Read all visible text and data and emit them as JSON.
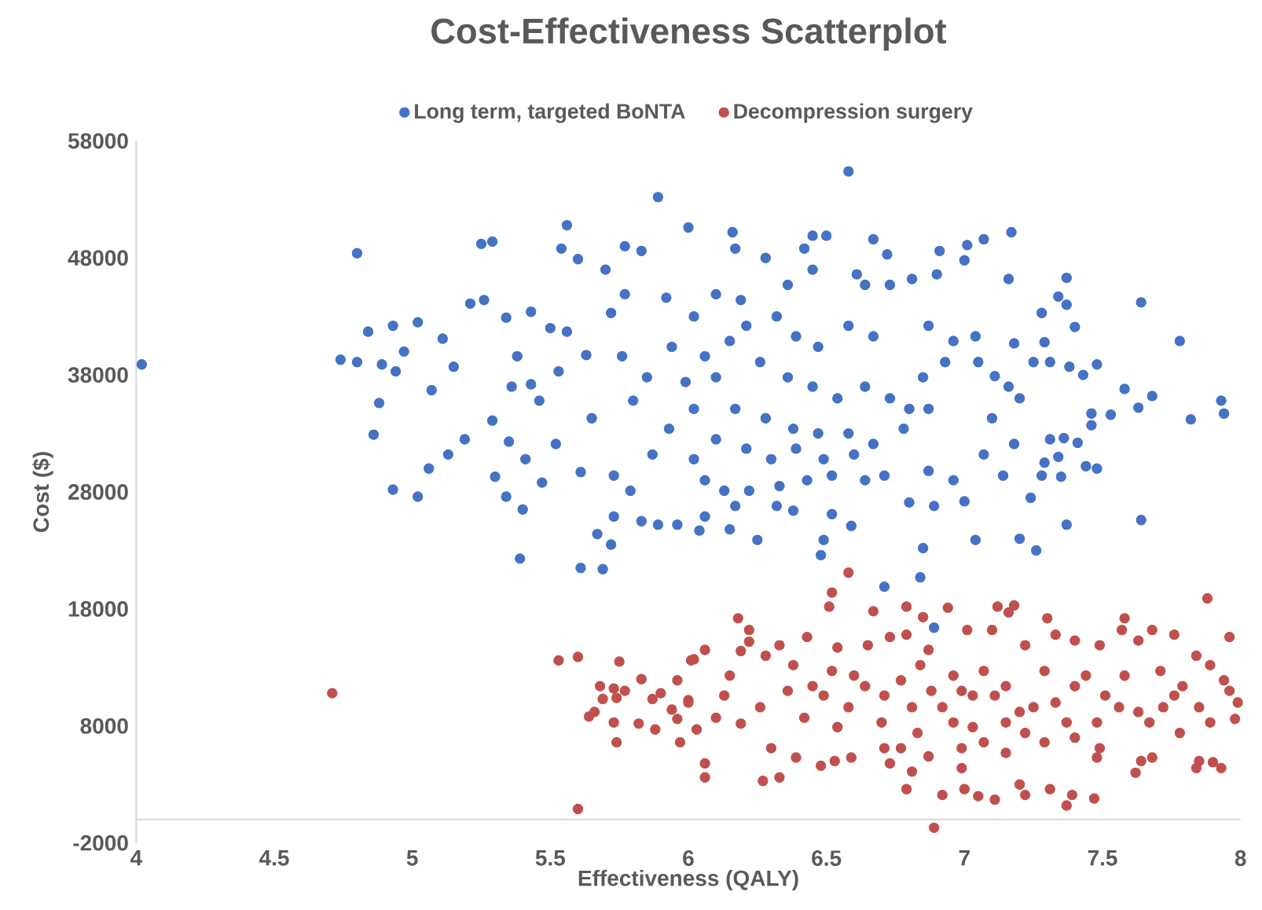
{
  "chart_data": {
    "type": "scatter",
    "title": "Cost-Effectiveness Scatterplot",
    "xlabel": "Effectiveness (QALY)",
    "ylabel": "Cost ($)",
    "xlim": [
      4,
      8
    ],
    "ylim": [
      -2000,
      58000
    ],
    "xticks": [
      4,
      4.5,
      5,
      5.5,
      6,
      6.5,
      7,
      7.5,
      8
    ],
    "yticks": [
      -2000,
      8000,
      18000,
      28000,
      38000,
      48000,
      58000
    ],
    "legend": "top",
    "series": [
      {
        "name": "Long term, targeted BoNTA",
        "color": "#4472c4",
        "x": [
          4.02,
          4.8,
          4.74,
          4.8,
          4.84,
          4.89,
          4.93,
          4.97,
          4.94,
          4.88,
          4.86,
          5.02,
          5.11,
          5.07,
          4.93,
          5.02,
          5.06,
          5.13,
          5.19,
          5.15,
          5.25,
          5.29,
          5.21,
          5.26,
          5.34,
          5.43,
          5.56,
          5.54,
          5.6,
          5.7,
          5.77,
          5.83,
          5.89,
          6.0,
          5.39,
          5.61,
          5.69,
          5.72,
          5.67,
          5.4,
          5.3,
          5.34,
          5.47,
          5.41,
          5.35,
          5.29,
          5.36,
          5.43,
          5.38,
          5.5,
          5.56,
          5.53,
          5.46,
          5.52,
          5.63,
          5.65,
          5.61,
          5.73,
          5.79,
          5.83,
          5.89,
          5.96,
          5.73,
          5.76,
          5.8,
          5.85,
          5.87,
          5.92,
          5.94,
          5.93,
          5.99,
          5.72,
          5.77,
          6.58,
          6.16,
          6.17,
          6.28,
          6.42,
          6.45,
          6.5,
          6.67,
          6.72,
          6.91,
          7.01,
          7.07,
          7.17,
          7.0,
          7.16,
          7.37,
          7.34,
          7.37,
          7.28,
          7.4,
          7.64,
          7.78,
          7.48,
          7.43,
          7.38,
          7.31,
          7.25,
          7.29,
          7.18,
          7.58,
          7.68,
          7.63,
          7.53,
          7.82,
          7.93,
          7.94,
          7.46,
          7.46,
          7.41,
          7.36,
          7.31,
          7.34,
          7.29,
          7.28,
          7.35,
          7.44,
          7.48,
          7.64,
          7.37,
          7.26,
          7.2,
          7.24,
          7.18,
          7.2,
          7.16,
          7.11,
          7.05,
          7.04,
          7.1,
          7.07,
          7.14,
          7.04,
          7.0,
          6.85,
          6.8,
          6.89,
          6.96,
          6.87,
          6.78,
          6.87,
          6.85,
          6.93,
          6.96,
          6.87,
          6.81,
          6.9,
          6.73,
          6.64,
          6.61,
          6.45,
          6.36,
          6.58,
          6.67,
          6.47,
          6.39,
          6.32,
          6.19,
          6.1,
          6.02,
          6.21,
          6.15,
          6.06,
          6.26,
          6.36,
          6.45,
          6.54,
          6.64,
          6.73,
          6.8,
          6.1,
          6.02,
          6.17,
          6.28,
          6.38,
          6.47,
          6.58,
          6.67,
          6.6,
          6.49,
          6.39,
          6.3,
          6.21,
          6.1,
          6.02,
          6.06,
          6.13,
          6.22,
          6.33,
          6.43,
          6.52,
          6.64,
          6.71,
          6.17,
          6.25,
          6.06,
          6.15,
          6.32,
          6.38,
          6.52,
          6.49,
          6.48,
          6.59,
          6.04,
          6.89,
          6.71,
          6.84
        ],
        "values": [
          38900,
          48400,
          39300,
          39100,
          41700,
          38900,
          42200,
          40000,
          38300,
          35600,
          32900,
          42500,
          41100,
          36700,
          28200,
          27600,
          30000,
          31200,
          32500,
          38700,
          49200,
          49400,
          44100,
          44400,
          42900,
          43400,
          50800,
          48800,
          47900,
          47000,
          49000,
          48600,
          53200,
          50600,
          22300,
          21500,
          21400,
          23500,
          24400,
          26500,
          29300,
          27600,
          28800,
          30800,
          32300,
          34100,
          37000,
          37200,
          39600,
          42000,
          41700,
          38300,
          35800,
          32100,
          39700,
          34300,
          29700,
          29400,
          28100,
          25500,
          25200,
          25200,
          25900,
          39600,
          35800,
          37800,
          31200,
          44600,
          40400,
          33400,
          37400,
          43300,
          44900,
          55400,
          50200,
          48800,
          48000,
          48800,
          49900,
          49900,
          49600,
          48300,
          48600,
          49100,
          49600,
          50200,
          47800,
          46200,
          46300,
          44700,
          44000,
          43300,
          42100,
          44200,
          40900,
          38900,
          38000,
          38700,
          39100,
          39100,
          40800,
          40700,
          36800,
          36200,
          35200,
          34600,
          34200,
          35800,
          34700,
          34700,
          33700,
          32200,
          32600,
          32500,
          31000,
          30500,
          29400,
          29300,
          30200,
          30000,
          25600,
          25200,
          23000,
          24000,
          27500,
          32100,
          36000,
          37000,
          37900,
          39100,
          41300,
          34300,
          31200,
          29400,
          23900,
          27200,
          23200,
          27100,
          26800,
          29000,
          29800,
          33400,
          35100,
          37800,
          39100,
          40900,
          42200,
          46200,
          46600,
          45700,
          45700,
          46600,
          47000,
          45700,
          42200,
          41300,
          40400,
          41300,
          43000,
          44400,
          44900,
          43000,
          42200,
          40900,
          39600,
          39100,
          37800,
          37000,
          36000,
          37000,
          36000,
          35100,
          37800,
          35100,
          35100,
          34300,
          33400,
          33000,
          33000,
          32100,
          31200,
          30800,
          31700,
          30800,
          31700,
          32500,
          30800,
          29000,
          28100,
          28100,
          28500,
          29000,
          29400,
          29000,
          29400,
          26800,
          23900,
          25900,
          24800,
          26800,
          26400,
          26100,
          23900,
          22600,
          25100,
          24700,
          16400,
          19900,
          20700
        ]
      },
      {
        "name": "Decompression surgery",
        "color": "#c0504d",
        "x": [
          4.71,
          5.53,
          5.6,
          5.75,
          5.83,
          5.96,
          6.01,
          5.68,
          5.73,
          5.77,
          5.69,
          5.74,
          5.87,
          5.9,
          6.0,
          5.94,
          5.64,
          5.66,
          5.73,
          5.82,
          5.88,
          5.96,
          6.03,
          5.74,
          5.97,
          5.6,
          6.58,
          6.52,
          6.51,
          6.67,
          6.79,
          6.85,
          6.94,
          7.12,
          7.18,
          7.16,
          7.3,
          7.58,
          7.88,
          7.96,
          6.18,
          6.22,
          6.02,
          6.06,
          6.19,
          6.22,
          6.28,
          6.33,
          6.43,
          6.54,
          6.65,
          6.73,
          6.79,
          6.87,
          7.01,
          7.1,
          7.22,
          7.33,
          7.4,
          7.49,
          7.57,
          7.63,
          7.68,
          7.76,
          7.84,
          7.89,
          7.94,
          7.99,
          7.98,
          7.93,
          7.85,
          7.84,
          6.0,
          6.06,
          6.06,
          6.1,
          6.13,
          6.19,
          6.15,
          6.26,
          6.27,
          6.33,
          6.3,
          6.39,
          6.42,
          6.49,
          6.48,
          6.53,
          6.54,
          6.58,
          6.59,
          6.64,
          6.7,
          6.71,
          6.73,
          6.79,
          6.81,
          6.87,
          6.89,
          6.92,
          6.92,
          6.96,
          6.99,
          7.0,
          7.05,
          7.03,
          7.11,
          7.11,
          7.15,
          7.2,
          7.22,
          7.25,
          7.31,
          7.37,
          7.39,
          7.47,
          7.4,
          7.48,
          7.48,
          7.49,
          7.56,
          7.62,
          7.64,
          7.68,
          7.67,
          7.72,
          7.78,
          7.79,
          7.85,
          7.89,
          7.96,
          7.9,
          7.03,
          7.07,
          7.15,
          7.2,
          7.29,
          7.33,
          7.37,
          7.44,
          7.51,
          7.58,
          7.63,
          7.71,
          7.76,
          6.77,
          6.81,
          6.71,
          6.6,
          6.52,
          6.45,
          6.36,
          6.38,
          6.84,
          6.88,
          6.96,
          6.99,
          6.83,
          6.77,
          7.22,
          7.15,
          7.29,
          7.4,
          7.07,
          6.99
        ],
        "values": [
          10800,
          13600,
          13900,
          13500,
          12000,
          11900,
          13600,
          11400,
          11200,
          11000,
          10300,
          10400,
          10300,
          10800,
          10200,
          9400,
          8800,
          9200,
          8300,
          8200,
          7700,
          8600,
          7700,
          6600,
          6600,
          900,
          21100,
          19400,
          18200,
          17800,
          18200,
          17300,
          18100,
          18200,
          18300,
          17700,
          17200,
          17200,
          18900,
          15600,
          17200,
          16200,
          13700,
          14500,
          14400,
          15200,
          14000,
          14900,
          15600,
          14700,
          14900,
          15600,
          15800,
          14500,
          16200,
          16200,
          14900,
          15800,
          15300,
          14900,
          16200,
          15300,
          16200,
          15800,
          14000,
          13200,
          11900,
          10000,
          8600,
          4400,
          5000,
          4400,
          10000,
          4800,
          3600,
          8700,
          10600,
          8200,
          12300,
          9600,
          3300,
          3600,
          6100,
          5300,
          8700,
          10600,
          4600,
          5000,
          7900,
          9600,
          5300,
          11400,
          8300,
          6100,
          4800,
          2600,
          4100,
          5400,
          -700,
          2100,
          9600,
          12300,
          4400,
          2600,
          2000,
          7900,
          10600,
          1700,
          5700,
          3000,
          2100,
          9600,
          2600,
          1200,
          2100,
          1800,
          11400,
          8300,
          5300,
          6100,
          9600,
          4000,
          5000,
          5300,
          8300,
          9600,
          7400,
          11400,
          9600,
          8300,
          11000,
          4900,
          10600,
          12700,
          11400,
          9200,
          12700,
          10000,
          8300,
          12300,
          10600,
          12300,
          9200,
          12700,
          10600,
          11900,
          9600,
          10600,
          12300,
          12700,
          11400,
          11000,
          13200,
          13200,
          11000,
          8300,
          11000,
          7400,
          6100,
          7400,
          8300,
          6600,
          7000,
          6600,
          6100
        ]
      }
    ]
  }
}
